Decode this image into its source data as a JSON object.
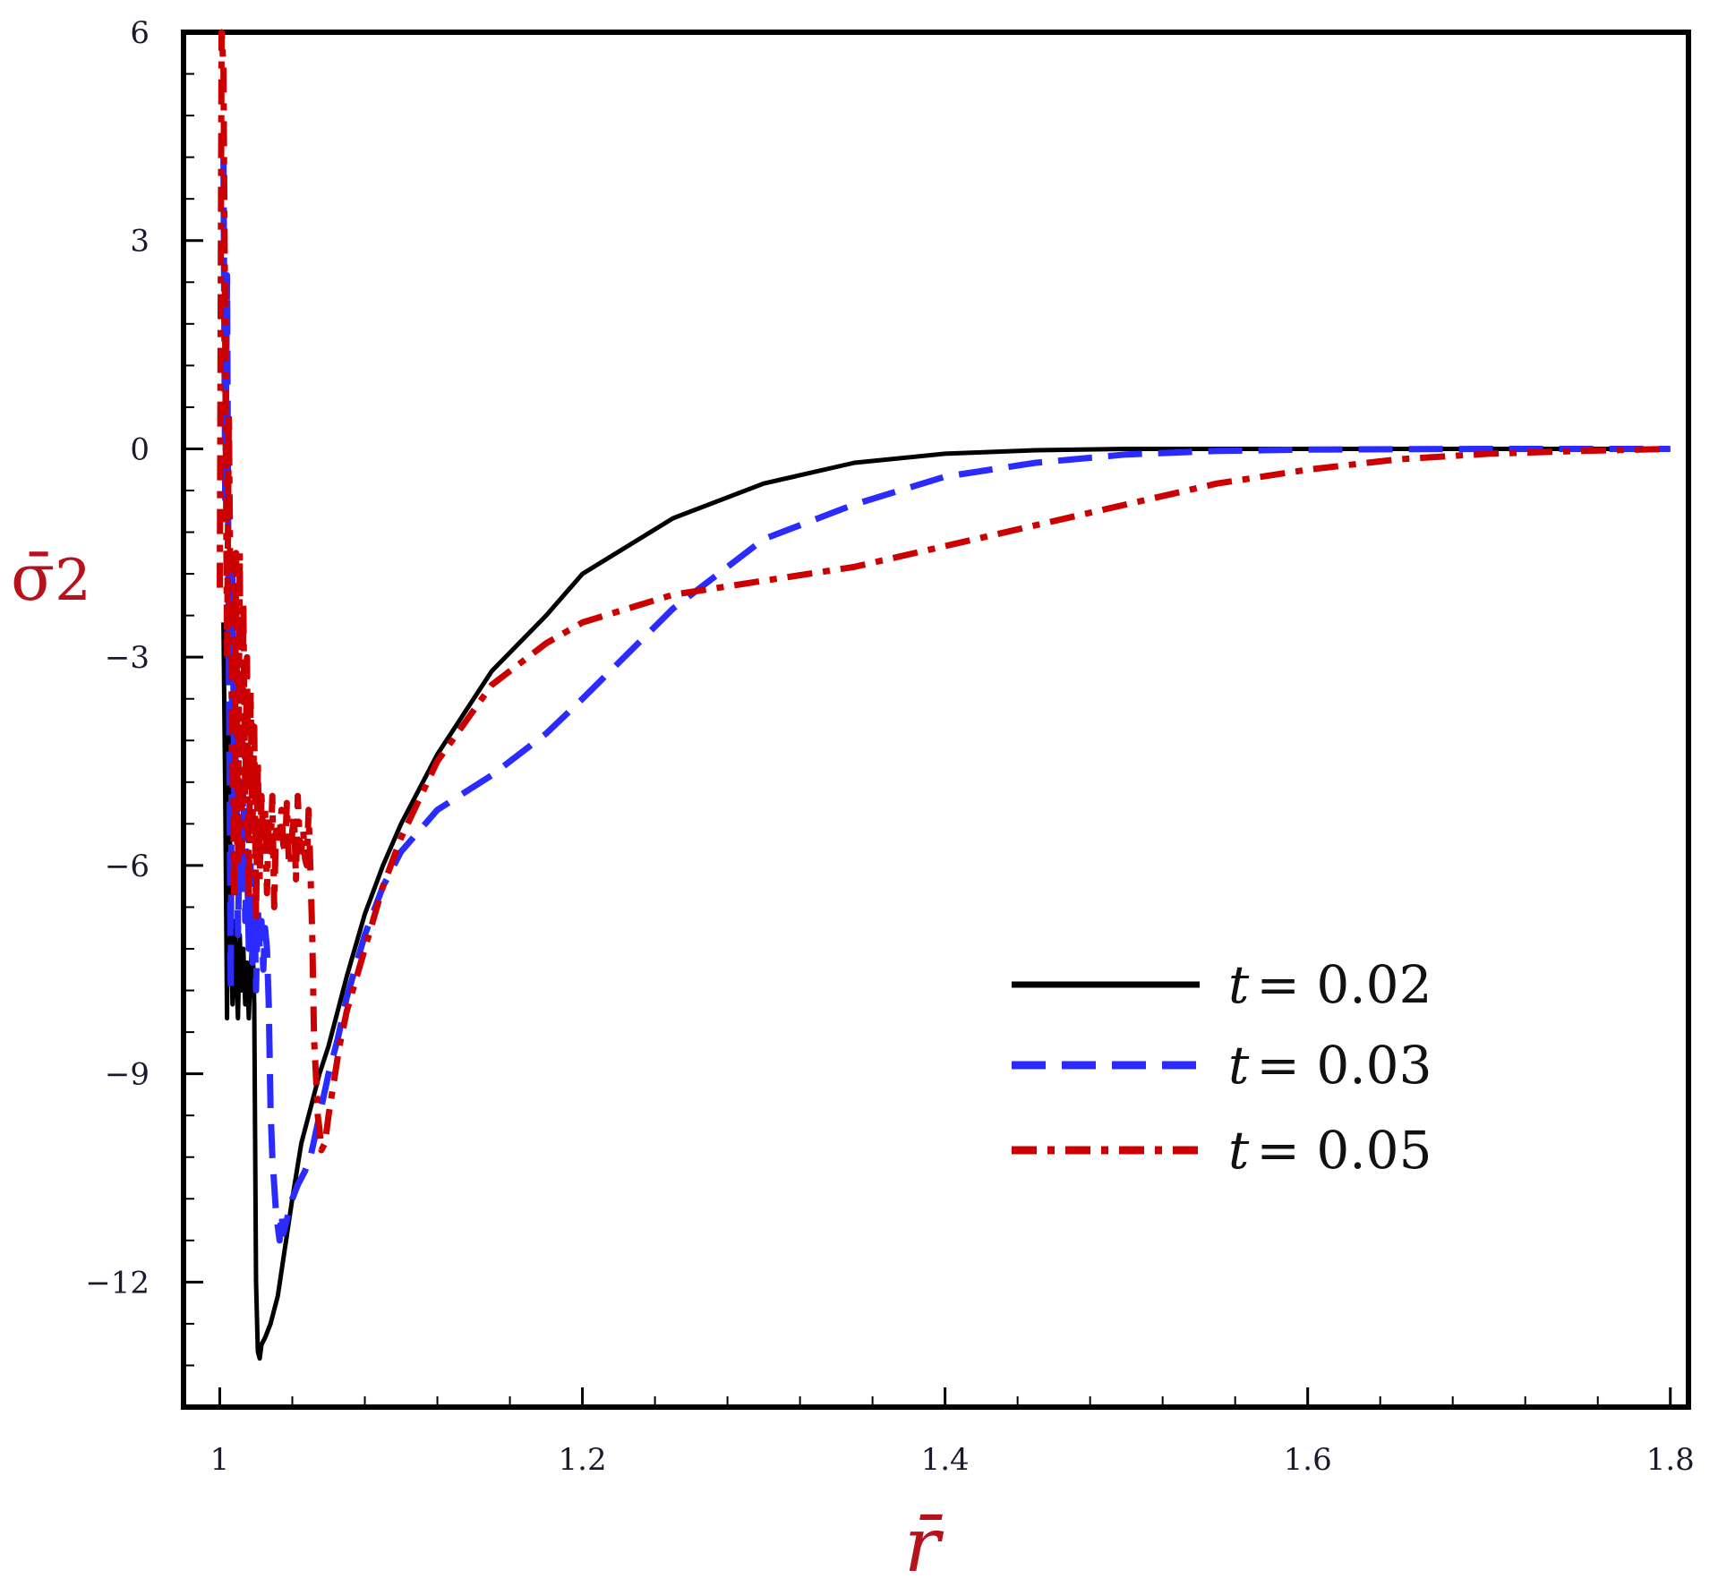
{
  "chart_data": {
    "type": "line",
    "xlabel": "r̄",
    "ylabel_main": "σ̄",
    "ylabel_sub": "2",
    "xlim": [
      0.98,
      1.81
    ],
    "ylim": [
      -13.8,
      6
    ],
    "x_ticks": [
      1,
      1.2,
      1.4,
      1.6,
      1.8
    ],
    "x_tick_labels": [
      "1",
      "1.2",
      "1.4",
      "1.6",
      "1.8"
    ],
    "y_ticks": [
      6,
      3,
      0,
      -3,
      -6,
      -9,
      -12
    ],
    "y_tick_labels": [
      "6",
      "3",
      "0",
      "−3",
      "−6",
      "−9",
      "−12"
    ],
    "grid": false,
    "legend_position": "lower-right",
    "series": [
      {
        "name": "t = 0.02",
        "legend_var": "t",
        "legend_value": "= 0.02",
        "color": "#000000",
        "style": "solid",
        "x": [
          1.002,
          1.003,
          1.004,
          1.005,
          1.006,
          1.007,
          1.008,
          1.009,
          1.01,
          1.011,
          1.012,
          1.013,
          1.014,
          1.015,
          1.016,
          1.017,
          1.018,
          1.019,
          1.02,
          1.021,
          1.022,
          1.023,
          1.025,
          1.028,
          1.032,
          1.036,
          1.04,
          1.045,
          1.05,
          1.055,
          1.06,
          1.07,
          1.08,
          1.09,
          1.1,
          1.12,
          1.15,
          1.18,
          1.2,
          1.25,
          1.3,
          1.35,
          1.4,
          1.45,
          1.5,
          1.55,
          1.6,
          1.7,
          1.8
        ],
        "y": [
          -2.5,
          -5.0,
          -8.2,
          -4.0,
          -6.5,
          -8.0,
          -6.8,
          -7.5,
          -8.2,
          -7.0,
          -7.8,
          -7.2,
          -8.0,
          -7.4,
          -8.2,
          -7.5,
          -7.0,
          -8.0,
          -12.0,
          -13.0,
          -13.1,
          -12.9,
          -12.8,
          -12.6,
          -12.2,
          -11.5,
          -10.8,
          -10.0,
          -9.5,
          -9.0,
          -8.6,
          -7.6,
          -6.7,
          -6.0,
          -5.4,
          -4.4,
          -3.2,
          -2.4,
          -1.8,
          -1.0,
          -0.5,
          -0.2,
          -0.07,
          -0.02,
          0.0,
          0.0,
          0.0,
          0.0,
          0.0
        ]
      },
      {
        "name": "t = 0.03",
        "legend_var": "t",
        "legend_value": "= 0.03",
        "color": "#2b2bff",
        "style": "dashed",
        "x": [
          1.002,
          1.003,
          1.004,
          1.005,
          1.006,
          1.007,
          1.008,
          1.009,
          1.01,
          1.011,
          1.012,
          1.013,
          1.014,
          1.015,
          1.016,
          1.017,
          1.018,
          1.019,
          1.02,
          1.021,
          1.022,
          1.023,
          1.024,
          1.025,
          1.026,
          1.027,
          1.028,
          1.029,
          1.03,
          1.031,
          1.032,
          1.033,
          1.034,
          1.035,
          1.036,
          1.038,
          1.04,
          1.043,
          1.047,
          1.05,
          1.055,
          1.06,
          1.065,
          1.07,
          1.08,
          1.09,
          1.1,
          1.11,
          1.12,
          1.15,
          1.18,
          1.2,
          1.25,
          1.3,
          1.35,
          1.4,
          1.45,
          1.5,
          1.55,
          1.6,
          1.7,
          1.8
        ],
        "y": [
          4.2,
          -0.8,
          2.5,
          -3.0,
          -7.8,
          -1.8,
          -5.0,
          -4.2,
          -7.0,
          -5.5,
          -6.2,
          -4.8,
          -6.8,
          -5.8,
          -7.2,
          -6.0,
          -7.4,
          -6.5,
          -7.8,
          -6.6,
          -7.2,
          -6.8,
          -7.5,
          -6.9,
          -7.2,
          -8.0,
          -9.5,
          -10.2,
          -10.6,
          -11.0,
          -11.2,
          -11.4,
          -11.0,
          -11.3,
          -11.2,
          -11.0,
          -10.8,
          -10.6,
          -10.4,
          -10.2,
          -9.6,
          -9.0,
          -8.5,
          -7.9,
          -7.0,
          -6.3,
          -5.8,
          -5.5,
          -5.2,
          -4.7,
          -4.1,
          -3.6,
          -2.3,
          -1.3,
          -0.8,
          -0.4,
          -0.2,
          -0.08,
          -0.03,
          -0.01,
          0.0,
          0.0
        ]
      },
      {
        "name": "t = 0.05",
        "legend_var": "t",
        "legend_value": "= 0.05",
        "color": "#cc0000",
        "style": "dashdot",
        "x": [
          1.0,
          1.001,
          1.002,
          1.003,
          1.004,
          1.005,
          1.006,
          1.007,
          1.008,
          1.009,
          1.01,
          1.011,
          1.012,
          1.013,
          1.014,
          1.015,
          1.016,
          1.017,
          1.018,
          1.019,
          1.02,
          1.021,
          1.022,
          1.023,
          1.024,
          1.025,
          1.026,
          1.027,
          1.028,
          1.029,
          1.03,
          1.031,
          1.032,
          1.033,
          1.034,
          1.035,
          1.036,
          1.037,
          1.038,
          1.039,
          1.04,
          1.041,
          1.042,
          1.043,
          1.044,
          1.045,
          1.046,
          1.047,
          1.048,
          1.049,
          1.05,
          1.051,
          1.052,
          1.053,
          1.054,
          1.055,
          1.056,
          1.058,
          1.06,
          1.063,
          1.066,
          1.07,
          1.08,
          1.09,
          1.1,
          1.12,
          1.15,
          1.18,
          1.2,
          1.25,
          1.3,
          1.35,
          1.4,
          1.45,
          1.5,
          1.55,
          1.6,
          1.65,
          1.7,
          1.75,
          1.8
        ],
        "y": [
          -2.0,
          6.0,
          5.5,
          1.5,
          -3.0,
          0.5,
          -2.5,
          -4.5,
          -6.5,
          -1.5,
          -6.0,
          -1.5,
          -5.8,
          -2.2,
          -5.0,
          -3.0,
          -6.5,
          -3.5,
          -5.5,
          -4.0,
          -6.8,
          -4.5,
          -6.2,
          -5.0,
          -5.6,
          -5.2,
          -6.4,
          -5.3,
          -5.8,
          -5.0,
          -6.6,
          -5.4,
          -5.6,
          -5.6,
          -5.2,
          -5.7,
          -5.8,
          -5.1,
          -5.9,
          -6.0,
          -5.5,
          -5.3,
          -6.2,
          -5.0,
          -5.6,
          -5.8,
          -5.5,
          -5.9,
          -6.0,
          -5.2,
          -6.1,
          -7.0,
          -8.5,
          -9.0,
          -9.6,
          -9.8,
          -10.1,
          -10.0,
          -9.6,
          -9.1,
          -8.6,
          -8.1,
          -7.2,
          -6.3,
          -5.6,
          -4.5,
          -3.4,
          -2.8,
          -2.5,
          -2.1,
          -1.9,
          -1.7,
          -1.4,
          -1.1,
          -0.8,
          -0.5,
          -0.3,
          -0.15,
          -0.07,
          -0.03,
          0.0
        ]
      }
    ]
  }
}
